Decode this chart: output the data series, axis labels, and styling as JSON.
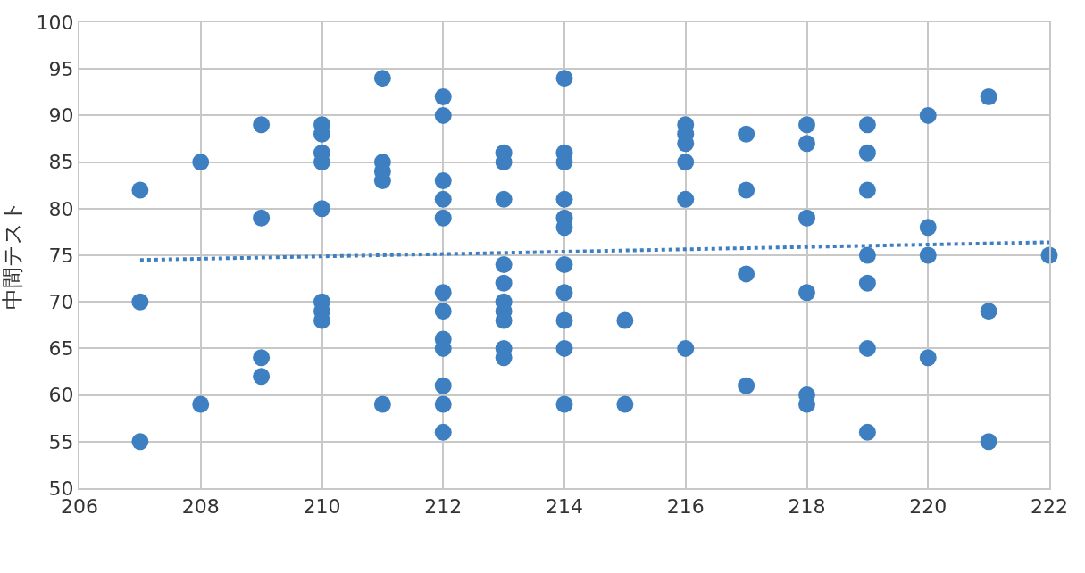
{
  "chart_data": {
    "type": "scatter",
    "ylabel": "中間テスト",
    "xlim": [
      206,
      222
    ],
    "xticks": [
      206,
      208,
      210,
      212,
      214,
      216,
      218,
      220,
      222
    ],
    "ylim": [
      50,
      100
    ],
    "yticks": [
      50,
      55,
      60,
      65,
      70,
      75,
      80,
      85,
      90,
      95,
      100
    ],
    "grid": true,
    "marker": "circle",
    "series": [
      {
        "color": "#3d7fc1",
        "x": [
          207,
          207,
          207,
          208,
          208,
          209,
          209,
          209,
          209,
          210,
          210,
          210,
          210,
          210,
          210,
          210,
          210,
          211,
          211,
          211,
          211,
          211,
          212,
          212,
          212,
          212,
          212,
          212,
          212,
          212,
          212,
          212,
          212,
          212,
          213,
          213,
          213,
          213,
          213,
          213,
          213,
          213,
          213,
          213,
          214,
          214,
          214,
          214,
          214,
          214,
          214,
          214,
          214,
          214,
          214,
          215,
          215,
          216,
          216,
          216,
          216,
          216,
          216,
          217,
          217,
          217,
          217,
          218,
          218,
          218,
          218,
          218,
          218,
          219,
          219,
          219,
          219,
          219,
          219,
          219,
          220,
          220,
          220,
          220,
          221,
          221,
          221,
          222
        ],
        "values": [
          82,
          70,
          55,
          85,
          59,
          89,
          79,
          64,
          62,
          89,
          88,
          86,
          85,
          80,
          70,
          69,
          68,
          94,
          85,
          84,
          83,
          59,
          92,
          90,
          83,
          81,
          79,
          71,
          69,
          66,
          65,
          61,
          59,
          56,
          86,
          85,
          81,
          74,
          72,
          70,
          69,
          68,
          65,
          64,
          94,
          86,
          85,
          81,
          79,
          78,
          74,
          71,
          68,
          65,
          59,
          68,
          59,
          89,
          88,
          87,
          85,
          81,
          65,
          88,
          82,
          73,
          61,
          89,
          87,
          79,
          71,
          60,
          59,
          89,
          86,
          82,
          75,
          72,
          65,
          56,
          90,
          78,
          75,
          64,
          92,
          69,
          55,
          75
        ]
      },
      {
        "type": "line",
        "color": "#3d7fc1",
        "line_style": "dotted",
        "marker": "none",
        "x": [
          207,
          222
        ],
        "values": [
          74.5,
          76.4
        ]
      }
    ]
  }
}
